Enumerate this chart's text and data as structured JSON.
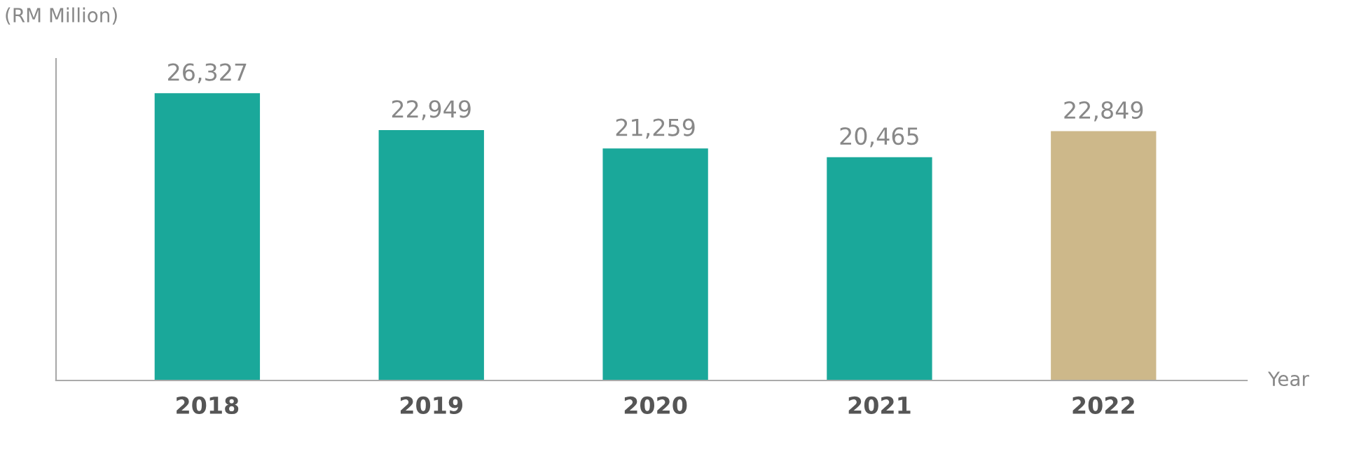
{
  "chart_data": {
    "type": "bar",
    "xlabel": "Year",
    "ylabel": "(RM Million)",
    "categories": [
      "2018",
      "2019",
      "2020",
      "2021",
      "2022"
    ],
    "values": [
      26327,
      22949,
      21259,
      20465,
      22849
    ],
    "colors": [
      "#1aa89a",
      "#1aa89a",
      "#1aa89a",
      "#1aa89a",
      "#cdb88a"
    ],
    "value_labels": [
      "26,327",
      "22,949",
      "21,259",
      "20,465",
      "22,849"
    ],
    "grid": false,
    "legend": false
  }
}
